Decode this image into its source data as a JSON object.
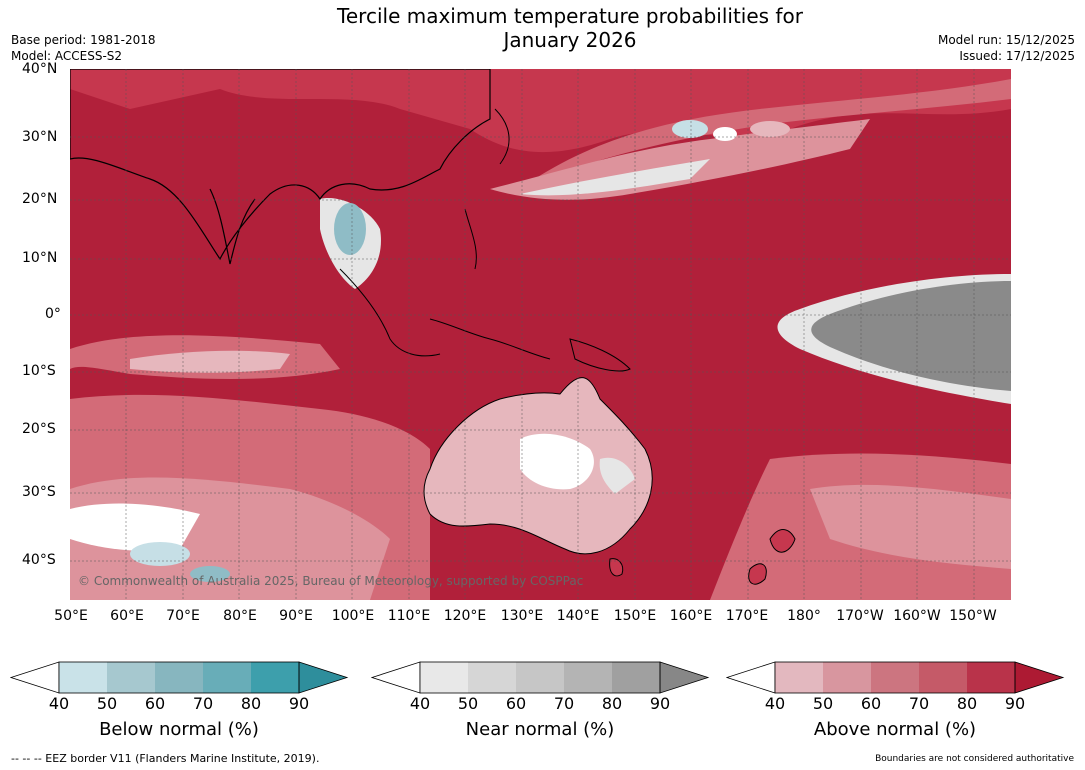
{
  "header": {
    "title_line1": "Tercile maximum temperature probabilities for",
    "title_line2": "January 2026",
    "base_period": "Base period: 1981-2018",
    "model": "Model: ACCESS-S2",
    "model_run": "Model run: 15/12/2025",
    "issued": "Issued: 17/12/2025"
  },
  "map": {
    "lat_labels": [
      "40°N",
      "30°N",
      "20°N",
      "10°N",
      "0°",
      "10°S",
      "20°S",
      "30°S",
      "40°S"
    ],
    "lon_labels": [
      "50°E",
      "60°E",
      "70°E",
      "80°E",
      "90°E",
      "100°E",
      "110°E",
      "120°E",
      "130°E",
      "140°E",
      "150°E",
      "160°E",
      "170°E",
      "180°",
      "170°W",
      "160°W",
      "150°W"
    ],
    "copyright": "© Commonwealth of Australia 2025, Bureau of Meteorology, supported by COSPPac",
    "colors": {
      "above_90": "#b1203a",
      "above_80": "#c6374e",
      "above_70": "#d36b78",
      "above_60": "#dd939c",
      "above_50": "#e6b7bd",
      "near_light": "#e6e6e6",
      "near_mid": "#c8c8c8",
      "near_dark": "#8a8a8a",
      "below_light": "#c6dfe6",
      "below_mid": "#8fbcc6"
    }
  },
  "colorbars": [
    {
      "label": "Below normal (%)",
      "ticks": [
        "40",
        "50",
        "60",
        "70",
        "80",
        "90"
      ],
      "colors": [
        "#ffffff",
        "#c9e2e8",
        "#a6c8cf",
        "#87b6bf",
        "#68adb8",
        "#3d9fac",
        "#2e8e9c"
      ]
    },
    {
      "label": "Near normal (%)",
      "ticks": [
        "40",
        "50",
        "60",
        "70",
        "80",
        "90"
      ],
      "colors": [
        "#ffffff",
        "#e8e8e8",
        "#d6d6d6",
        "#c6c6c6",
        "#b4b4b4",
        "#a0a0a0",
        "#878787"
      ]
    },
    {
      "label": "Above normal (%)",
      "ticks": [
        "40",
        "50",
        "60",
        "70",
        "80",
        "90"
      ],
      "colors": [
        "#ffffff",
        "#e3b8bf",
        "#d8969f",
        "#cc7580",
        "#c55a68",
        "#b9334a",
        "#ad1a33"
      ]
    }
  ],
  "footer": {
    "eez": "--  --  -- EEZ border V11 (Flanders Marine Institute, 2019).",
    "disclaimer": "Boundaries are not considered authoritative"
  }
}
